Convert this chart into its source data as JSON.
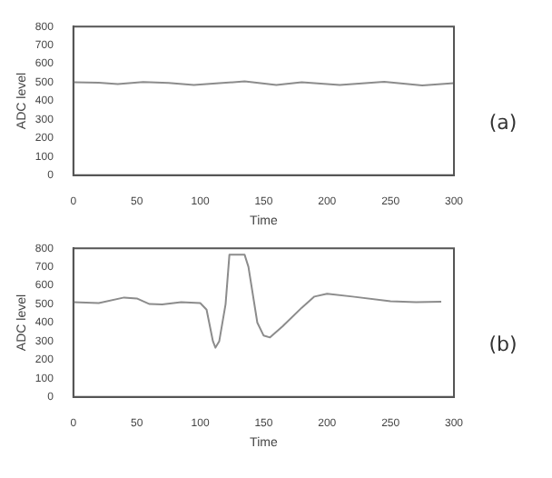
{
  "chart_data": [
    {
      "type": "line",
      "xlabel": "Time",
      "ylabel": "ADC level",
      "annotations": [
        "(a)"
      ],
      "grid": false,
      "legend": false,
      "marker": "none",
      "line_style": "solid",
      "xlim": [
        0,
        300
      ],
      "xticks": [
        0,
        50,
        100,
        150,
        200,
        250,
        300
      ],
      "ylim": [
        0,
        800
      ],
      "yticks": [
        0,
        100,
        200,
        300,
        400,
        500,
        600,
        700,
        800
      ],
      "series": [
        {
          "color": "#8c8c8c",
          "x": [
            0,
            20,
            35,
            55,
            75,
            95,
            115,
            135,
            160,
            180,
            210,
            245,
            275,
            300
          ],
          "values": [
            500,
            498,
            490,
            502,
            497,
            485,
            495,
            505,
            485,
            500,
            485,
            503,
            483,
            495
          ]
        }
      ]
    },
    {
      "type": "line",
      "xlabel": "Time",
      "ylabel": "ADC level",
      "annotations": [
        "(b)"
      ],
      "grid": false,
      "legend": false,
      "marker": "none",
      "line_style": "solid",
      "xlim": [
        0,
        300
      ],
      "xticks": [
        0,
        50,
        100,
        150,
        200,
        250,
        300
      ],
      "ylim": [
        0,
        800
      ],
      "yticks": [
        0,
        100,
        200,
        300,
        400,
        500,
        600,
        700,
        800
      ],
      "series": [
        {
          "color": "#8c8c8c",
          "x": [
            0,
            20,
            40,
            50,
            60,
            70,
            85,
            100,
            105,
            110,
            112,
            115,
            120,
            123,
            135,
            138,
            145,
            150,
            155,
            165,
            180,
            190,
            200,
            220,
            250,
            270,
            290
          ],
          "values": [
            510,
            505,
            535,
            530,
            500,
            498,
            510,
            505,
            470,
            300,
            265,
            300,
            500,
            765,
            765,
            700,
            400,
            330,
            320,
            380,
            480,
            540,
            555,
            540,
            515,
            510,
            513
          ]
        }
      ]
    }
  ]
}
